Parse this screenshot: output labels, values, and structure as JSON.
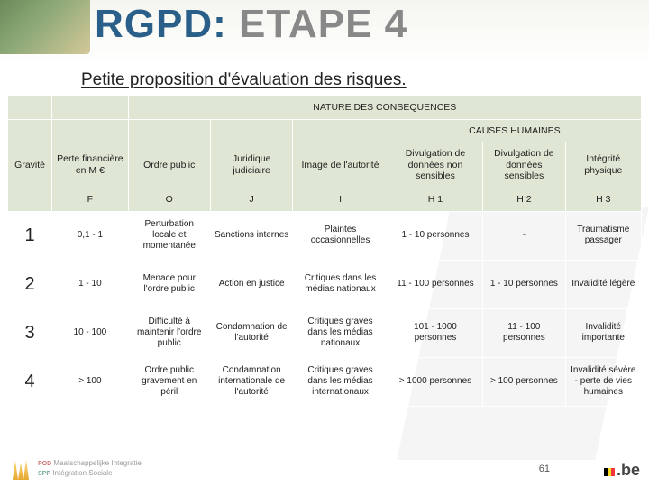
{
  "title_part1": "RGPD:",
  "title_part2": " ETAPE 4",
  "subtitle": "Petite proposition d'évaluation des risques.",
  "colors": {
    "band_bg": "#e0e6d4",
    "title_blue": "#2a5f8a",
    "title_grey": "#888888"
  },
  "table": {
    "band1": "NATURE DES CONSEQUENCES",
    "band2": "CAUSES HUMAINES",
    "headers": {
      "gravite": "Gravité",
      "perte": "Perte financière en M €",
      "ordre": "Ordre public",
      "juridique": "Juridique judiciaire",
      "image_aut": "Image de l'autorité",
      "divulg_ns": "Divulgation de données non sensibles",
      "divulg_s": "Divulgation de données sensibles",
      "integrite": "Intégrité physique"
    },
    "code_row": [
      "",
      "F",
      "O",
      "J",
      "I",
      "H 1",
      "H 2",
      "H 3"
    ],
    "rows": [
      {
        "g": "1",
        "f": "0,1 - 1",
        "o": "Perturbation locale et momentanée",
        "j": "Sanctions internes",
        "i": "Plaintes occasionnelles",
        "h1": "1 - 10 personnes",
        "h2": "-",
        "h3": "Traumatisme passager"
      },
      {
        "g": "2",
        "f": "1 - 10",
        "o": "Menace pour l'ordre public",
        "j": "Action en justice",
        "i": "Critiques dans les médias nationaux",
        "h1": "11 - 100 personnes",
        "h2": "1 - 10 personnes",
        "h3": "Invalidité légère"
      },
      {
        "g": "3",
        "f": "10 - 100",
        "o": "Difficulté à maintenir l'ordre public",
        "j": "Condamnation de l'autorité",
        "i": "Critiques graves dans les médias nationaux",
        "h1": "101 - 1000 personnes",
        "h2": "11 - 100 personnes",
        "h3": "Invalidité importante"
      },
      {
        "g": "4",
        "f": "> 100",
        "o": "Ordre public gravement en péril",
        "j": "Condamnation internationale de l'autorité",
        "i": "Critiques graves dans les médias internationaux",
        "h1": "> 1000 personnes",
        "h2": "> 100 personnes",
        "h3": "Invalidité sévère - perte de vies humaines"
      }
    ],
    "col_widths": [
      "7%",
      "12%",
      "13%",
      "13%",
      "15%",
      "15%",
      "13%",
      "12%"
    ]
  },
  "footer": {
    "org1": "POD",
    "org2": "SPP",
    "org_text1": "Maatschappelijke Integratie",
    "org_text2": "Intégration Sociale",
    "page": "61",
    "be": ".be",
    "flag": [
      "#000000",
      "#fdda24",
      "#ef3340"
    ]
  }
}
